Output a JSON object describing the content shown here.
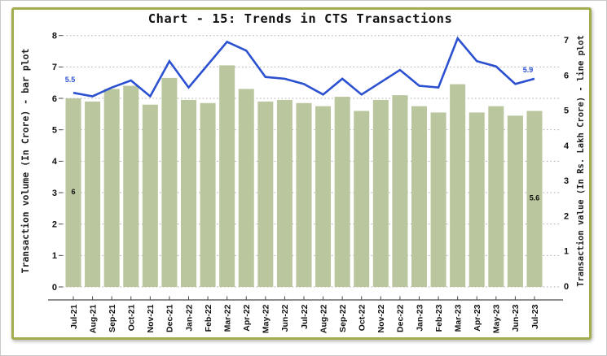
{
  "title": "Chart - 15: Trends in CTS Transactions",
  "left_axis": {
    "title": "Transaction volume (In Crore) - bar plot",
    "ticks": [
      "0",
      "1",
      "2",
      "3",
      "4",
      "5",
      "6",
      "7",
      "8"
    ],
    "min": 0,
    "max": 8
  },
  "right_axis": {
    "title": "Transaction value (In Rs. Lakh Crore) - line plot",
    "ticks": [
      "0",
      "1",
      "2",
      "3",
      "4",
      "5",
      "6",
      "7"
    ],
    "min": 0,
    "max": 7
  },
  "chart_data": {
    "type": "bar+line",
    "title": "Chart - 15: Trends in CTS Transactions",
    "categories": [
      "Jul-21",
      "Aug-21",
      "Sep-21",
      "Oct-21",
      "Nov-21",
      "Dec-21",
      "Jan-22",
      "Feb-22",
      "Mar-22",
      "Apr-22",
      "May-22",
      "Jun-22",
      "Jul-22",
      "Aug-22",
      "Sep-22",
      "Oct-22",
      "Nov-22",
      "Dec-22",
      "Jan-23",
      "Feb-23",
      "Mar-23",
      "Apr-23",
      "May-23",
      "Jun-23",
      "Jul-23"
    ],
    "series": [
      {
        "name": "Transaction volume (In Crore)",
        "type": "bar",
        "axis": "left",
        "values": [
          6.0,
          5.9,
          6.3,
          6.4,
          5.8,
          6.65,
          5.95,
          5.85,
          7.05,
          6.3,
          5.9,
          5.95,
          5.85,
          5.75,
          6.05,
          5.6,
          5.95,
          6.1,
          5.75,
          5.55,
          6.45,
          5.55,
          5.75,
          5.45,
          5.6
        ]
      },
      {
        "name": "Transaction value (In Rs. Lakh Crore)",
        "type": "line",
        "axis": "right",
        "values": [
          5.5,
          5.4,
          5.65,
          5.85,
          5.4,
          6.4,
          5.65,
          6.3,
          6.95,
          6.7,
          5.95,
          5.9,
          5.75,
          5.45,
          5.9,
          5.45,
          5.8,
          6.15,
          5.7,
          5.65,
          7.05,
          6.4,
          6.25,
          5.75,
          5.9
        ]
      }
    ],
    "annotations": {
      "bar_labels": [
        {
          "index": 0,
          "text": "6"
        },
        {
          "index": 24,
          "text": "5.6"
        }
      ],
      "line_labels": [
        {
          "index": 0,
          "text": "5.5"
        },
        {
          "index": 24,
          "text": "5.9"
        }
      ]
    },
    "ylim_left": [
      0,
      8
    ],
    "ylim_right": [
      0,
      7
    ],
    "grid": "horizontal-dotted",
    "legend_position": "none"
  },
  "colors": {
    "bar": "#bac69d",
    "line": "#2b50d0",
    "line_label": "#2b50d0",
    "bar_label": "#111111",
    "grid": "#aeaeae",
    "spine": "#4a4a4a",
    "frame": "#a3ac4e",
    "text": "#111111"
  }
}
